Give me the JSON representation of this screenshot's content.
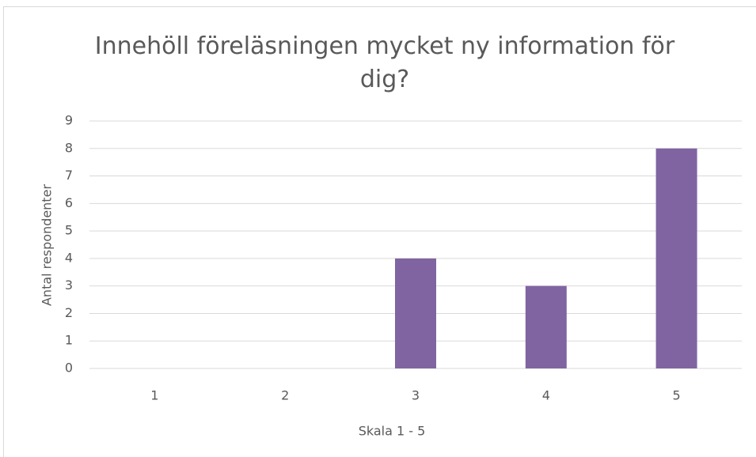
{
  "chart_data": {
    "type": "bar",
    "title": "Innehöll föreläsningen mycket ny information för dig?",
    "x_label": "Skala 1 - 5",
    "y_label": "Antal respondenter",
    "categories": [
      "1",
      "2",
      "3",
      "4",
      "5"
    ],
    "values": [
      0,
      0,
      4,
      3,
      8
    ],
    "color": "#8064a2",
    "ylim": [
      0,
      9
    ],
    "yticks": [
      0,
      1,
      2,
      3,
      4,
      5,
      6,
      7,
      8,
      9
    ],
    "grid": true
  }
}
